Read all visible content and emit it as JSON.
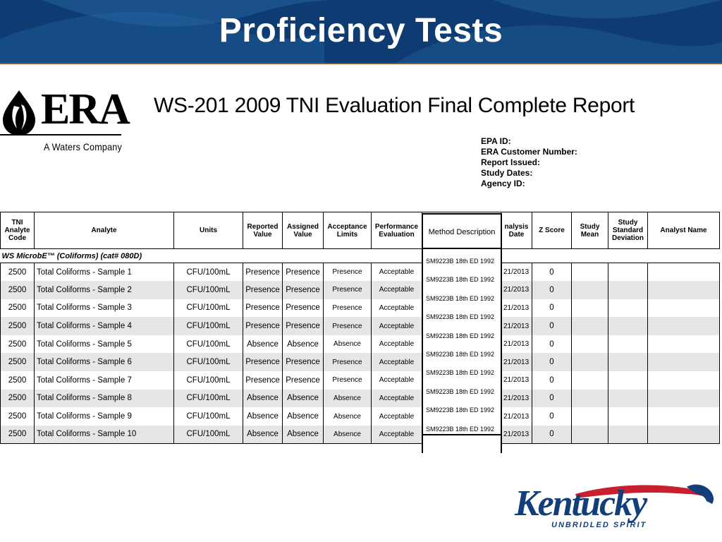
{
  "slide": {
    "title": "Proficiency Tests"
  },
  "era": {
    "wordmark": "ERA",
    "tagline": "A Waters Company"
  },
  "report": {
    "title": "WS-201 2009 TNI Evaluation Final Complete Report",
    "info": [
      "EPA ID:",
      "ERA Customer Number:",
      "Report Issued:",
      "Study Dates:",
      "Agency ID:"
    ]
  },
  "table": {
    "headers": {
      "code": "TNI Analyte Code",
      "analyte": "Analyte",
      "units": "Units",
      "reported": "Reported Value",
      "assigned": "Assigned Value",
      "acceptance": "Acceptance Limits",
      "performance": "Performance Evaluation",
      "method": "Method Description",
      "date": "nalysis Date",
      "z": "Z Score",
      "mean": "Study Mean",
      "sd": "Study Standard Deviation",
      "analyst": "Analyst Name"
    },
    "group": "WS MicrobE™ (Coliforms) (cat# 080D)",
    "rows": [
      {
        "code": "2500",
        "analyte": "Total Coliforms - Sample 1",
        "units": "CFU/100mL",
        "reported": "Presence",
        "assigned": "Presence",
        "acceptance": "Presence",
        "performance": "Acceptable",
        "method": "SM9223B 18th ED 1992",
        "date": "21/2013",
        "z": "0"
      },
      {
        "code": "2500",
        "analyte": "Total Coliforms - Sample 2",
        "units": "CFU/100mL",
        "reported": "Presence",
        "assigned": "Presence",
        "acceptance": "Presence",
        "performance": "Acceptable",
        "method": "SM9223B 18th ED 1992",
        "date": "21/2013",
        "z": "0"
      },
      {
        "code": "2500",
        "analyte": "Total Coliforms - Sample 3",
        "units": "CFU/100mL",
        "reported": "Presence",
        "assigned": "Presence",
        "acceptance": "Presence",
        "performance": "Acceptable",
        "method": "SM9223B 18th ED 1992",
        "date": "21/2013",
        "z": "0"
      },
      {
        "code": "2500",
        "analyte": "Total Coliforms - Sample 4",
        "units": "CFU/100mL",
        "reported": "Presence",
        "assigned": "Presence",
        "acceptance": "Presence",
        "performance": "Acceptable",
        "method": "SM9223B 18th ED 1992",
        "date": "21/2013",
        "z": "0"
      },
      {
        "code": "2500",
        "analyte": "Total Coliforms - Sample 5",
        "units": "CFU/100mL",
        "reported": "Absence",
        "assigned": "Absence",
        "acceptance": "Absence",
        "performance": "Acceptable",
        "method": "SM9223B 18th ED 1992",
        "date": "21/2013",
        "z": "0"
      },
      {
        "code": "2500",
        "analyte": "Total Coliforms - Sample 6",
        "units": "CFU/100mL",
        "reported": "Presence",
        "assigned": "Presence",
        "acceptance": "Presence",
        "performance": "Acceptable",
        "method": "SM9223B 18th ED 1992",
        "date": "21/2013",
        "z": "0"
      },
      {
        "code": "2500",
        "analyte": "Total Coliforms - Sample 7",
        "units": "CFU/100mL",
        "reported": "Presence",
        "assigned": "Presence",
        "acceptance": "Presence",
        "performance": "Acceptable",
        "method": "SM9223B 18th ED 1992",
        "date": "21/2013",
        "z": "0"
      },
      {
        "code": "2500",
        "analyte": "Total Coliforms - Sample 8",
        "units": "CFU/100mL",
        "reported": "Absence",
        "assigned": "Absence",
        "acceptance": "Absence",
        "performance": "Acceptable",
        "method": "SM9223B 18th ED 1992",
        "date": "21/2013",
        "z": "0"
      },
      {
        "code": "2500",
        "analyte": "Total Coliforms - Sample 9",
        "units": "CFU/100mL",
        "reported": "Absence",
        "assigned": "Absence",
        "acceptance": "Absence",
        "performance": "Acceptable",
        "method": "SM9223B 18th ED 1992",
        "date": "21/2013",
        "z": "0"
      },
      {
        "code": "2500",
        "analyte": "Total Coliforms - Sample 10",
        "units": "CFU/100mL",
        "reported": "Absence",
        "assigned": "Absence",
        "acceptance": "Absence",
        "performance": "Acceptable",
        "method": "SM9223B 18th ED 1992",
        "date": "21/2013",
        "z": "0"
      }
    ]
  },
  "kentucky": {
    "wordmark": "Kentucky",
    "tagline": "UNBRIDLED SPIRIT",
    "colors": {
      "blue": "#123f7c",
      "red": "#c8202e"
    }
  },
  "colors": {
    "banner": "#0e3c72",
    "row_shade": "#e6e6e6"
  }
}
